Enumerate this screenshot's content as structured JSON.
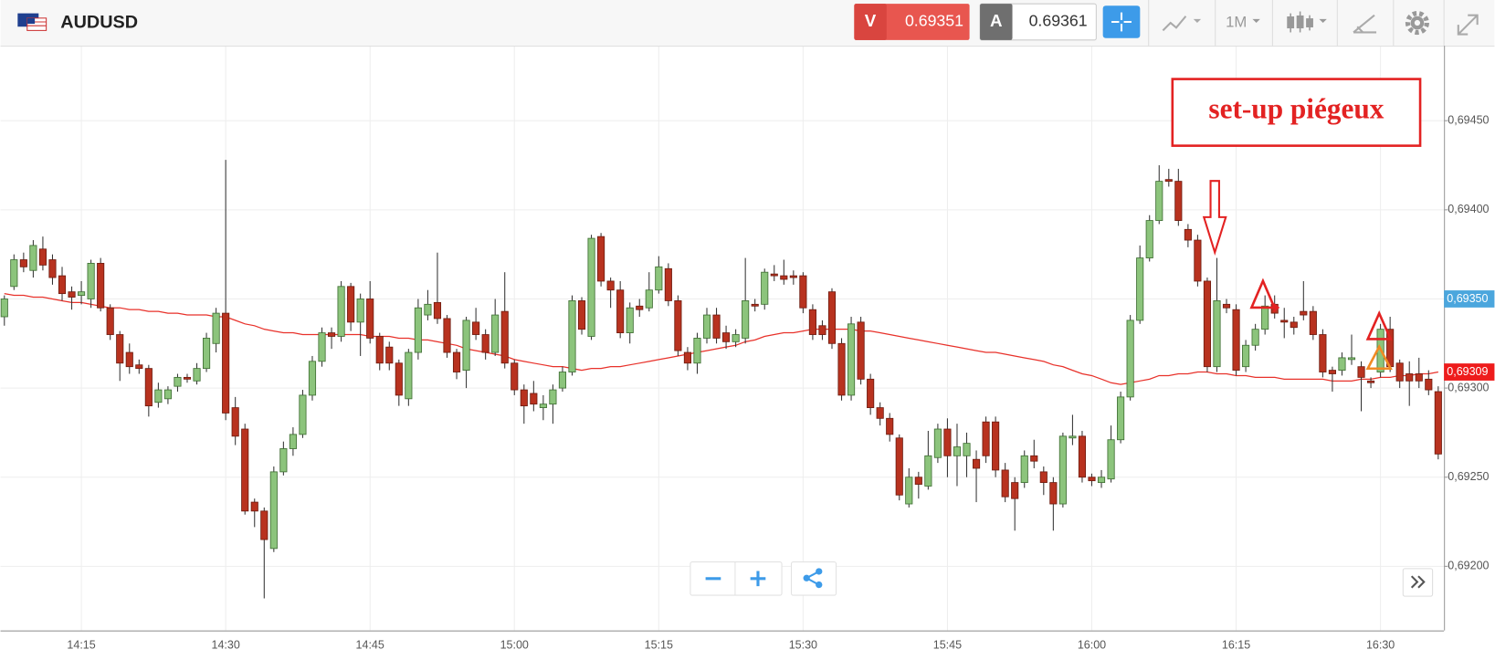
{
  "header": {
    "symbol": "AUDUSD",
    "sell_label": "V",
    "sell_price": 0.69351,
    "buy_label": "A",
    "buy_price": 0.69361,
    "timeframe": "1M"
  },
  "chart_data": {
    "type": "candlestick",
    "up_color": "#8cc47c",
    "down_color": "#b8321f",
    "grid": true,
    "annotation": "set-up piégeux",
    "x": [
      null,
      null,
      null,
      null,
      null,
      null,
      null,
      null,
      "14:15",
      null,
      null,
      null,
      null,
      null,
      null,
      null,
      null,
      null,
      null,
      null,
      null,
      null,
      null,
      "14:30",
      null,
      null,
      null,
      null,
      null,
      null,
      null,
      null,
      null,
      null,
      null,
      null,
      null,
      null,
      "14:45",
      null,
      null,
      null,
      null,
      null,
      null,
      null,
      null,
      null,
      null,
      null,
      null,
      null,
      null,
      "15:00",
      null,
      null,
      null,
      null,
      null,
      null,
      null,
      null,
      null,
      null,
      null,
      null,
      null,
      null,
      "15:15",
      null,
      null,
      null,
      null,
      null,
      null,
      null,
      null,
      null,
      null,
      null,
      null,
      null,
      null,
      "15:30",
      null,
      null,
      null,
      null,
      null,
      null,
      null,
      null,
      null,
      null,
      null,
      null,
      null,
      null,
      "15:45",
      null,
      null,
      null,
      null,
      null,
      null,
      null,
      null,
      null,
      null,
      null,
      null,
      null,
      null,
      "16:00",
      null,
      null,
      null,
      null,
      null,
      null,
      null,
      null,
      null,
      null,
      null,
      null,
      null,
      null,
      "16:15",
      null,
      null,
      null,
      null,
      null,
      null,
      null,
      null,
      null,
      null,
      null,
      null,
      null,
      null,
      "16:30",
      null,
      null,
      null,
      null,
      null,
      null
    ],
    "open": [
      0.6934,
      0.69357,
      0.69372,
      0.69366,
      0.69378,
      0.69372,
      0.69363,
      0.69354,
      0.69352,
      0.6935,
      0.6937,
      0.69345,
      0.6933,
      0.6932,
      0.69313,
      0.69311,
      0.69292,
      0.69294,
      0.69301,
      0.69306,
      0.69304,
      0.69311,
      0.69325,
      0.69342,
      0.69289,
      0.69277,
      0.69236,
      0.69231,
      0.6921,
      0.69253,
      0.69266,
      0.69274,
      0.69296,
      0.69315,
      0.69331,
      0.69329,
      0.69357,
      0.69337,
      0.6935,
      0.69329,
      0.69323,
      0.69314,
      0.69294,
      0.6932,
      0.69341,
      0.69348,
      0.69339,
      0.6932,
      0.6931,
      0.69337,
      0.6933,
      0.6932,
      0.69343,
      0.69314,
      0.69299,
      0.69297,
      0.69289,
      0.69291,
      0.693,
      0.69309,
      0.69349,
      0.69329,
      0.69385,
      0.6936,
      0.69355,
      0.69331,
      0.69346,
      0.69345,
      0.69355,
      0.69367,
      0.69349,
      0.6932,
      0.69314,
      0.69328,
      0.69341,
      0.69331,
      0.69326,
      0.69328,
      0.69347,
      0.69347,
      0.69364,
      0.69363,
      0.69363,
      0.69363,
      0.69344,
      0.69335,
      0.69354,
      0.69325,
      0.69296,
      0.69337,
      0.69305,
      0.69289,
      0.69283,
      0.69272,
      0.69235,
      0.6925,
      0.69245,
      0.69261,
      0.69277,
      0.69262,
      0.69262,
      0.6926,
      0.69281,
      0.69281,
      0.69254,
      0.69247,
      0.69247,
      0.69262,
      0.69253,
      0.69247,
      0.69235,
      0.69272,
      0.69273,
      0.6925,
      0.69247,
      0.69249,
      0.69271,
      0.69295,
      0.69338,
      0.69373,
      0.69394,
      0.69417,
      0.69416,
      0.69389,
      0.69383,
      0.6936,
      0.69312,
      0.69347,
      0.69344,
      0.69312,
      0.69324,
      0.69333,
      0.69347,
      0.69338,
      0.69337,
      0.69343,
      0.69343,
      0.6933,
      0.6931,
      0.6931,
      0.69316,
      0.69312,
      0.69304,
      0.69309,
      0.69333,
      0.69314,
      0.69308,
      0.69308,
      0.69305,
      0.69298
    ],
    "high": [
      0.69352,
      0.69375,
      0.69376,
      0.69383,
      0.69385,
      0.69375,
      0.69368,
      0.69357,
      0.6936,
      0.69372,
      0.69373,
      0.69347,
      0.69332,
      0.69325,
      0.69316,
      0.69313,
      0.69303,
      0.69301,
      0.69308,
      0.69308,
      0.69314,
      0.69331,
      0.69345,
      0.69428,
      0.69295,
      0.6928,
      0.69238,
      0.69233,
      0.69256,
      0.6927,
      0.69278,
      0.69299,
      0.69318,
      0.69334,
      0.69334,
      0.6936,
      0.69359,
      0.69353,
      0.6936,
      0.69331,
      0.69326,
      0.69316,
      0.69322,
      0.6935,
      0.69355,
      0.69376,
      0.69341,
      0.69322,
      0.6934,
      0.69345,
      0.69333,
      0.6935,
      0.69365,
      0.69316,
      0.69302,
      0.69304,
      0.69296,
      0.69302,
      0.69312,
      0.69352,
      0.69351,
      0.69386,
      0.69387,
      0.69362,
      0.6936,
      0.69348,
      0.6935,
      0.69365,
      0.69374,
      0.6937,
      0.69352,
      0.69323,
      0.69331,
      0.69345,
      0.69345,
      0.69335,
      0.69333,
      0.69373,
      0.6935,
      0.69367,
      0.69369,
      0.69372,
      0.69366,
      0.69365,
      0.69347,
      0.69338,
      0.69356,
      0.69328,
      0.6934,
      0.6934,
      0.69308,
      0.69292,
      0.69286,
      0.69274,
      0.69255,
      0.69253,
      0.69276,
      0.6928,
      0.69283,
      0.6928,
      0.69275,
      0.69265,
      0.69284,
      0.69284,
      0.69258,
      0.6925,
      0.69265,
      0.69271,
      0.69256,
      0.6925,
      0.69275,
      0.69285,
      0.69276,
      0.69252,
      0.69254,
      0.69279,
      0.69298,
      0.69341,
      0.6938,
      0.69397,
      0.69425,
      0.69423,
      0.69423,
      0.69392,
      0.69386,
      0.69362,
      0.69373,
      0.6935,
      0.69347,
      0.69327,
      0.69336,
      0.69352,
      0.69352,
      0.69345,
      0.6934,
      0.6936,
      0.69346,
      0.69333,
      0.69312,
      0.6932,
      0.6933,
      0.69315,
      0.69306,
      0.69336,
      0.6934,
      0.69316,
      0.69315,
      0.69317,
      0.6931,
      0.69301
    ],
    "low": [
      0.69335,
      0.69355,
      0.69365,
      0.69362,
      0.69366,
      0.69358,
      0.69349,
      0.69344,
      0.69347,
      0.69345,
      0.69343,
      0.69327,
      0.69304,
      0.69308,
      0.69308,
      0.69284,
      0.69289,
      0.69291,
      0.69298,
      0.69303,
      0.69302,
      0.69309,
      0.6932,
      0.69282,
      0.69268,
      0.69229,
      0.69222,
      0.69182,
      0.69208,
      0.69251,
      0.69262,
      0.69272,
      0.69293,
      0.69312,
      0.69322,
      0.69326,
      0.69332,
      0.69318,
      0.69325,
      0.6931,
      0.6931,
      0.6929,
      0.6929,
      0.69316,
      0.69338,
      0.69336,
      0.69317,
      0.69305,
      0.693,
      0.69327,
      0.69316,
      0.69318,
      0.69311,
      0.69296,
      0.6928,
      0.69287,
      0.69282,
      0.6928,
      0.69298,
      0.69307,
      0.6933,
      0.69327,
      0.69357,
      0.69345,
      0.69328,
      0.69325,
      0.6934,
      0.69343,
      0.69353,
      0.69346,
      0.69318,
      0.6931,
      0.69308,
      0.69325,
      0.69325,
      0.69322,
      0.69323,
      0.69325,
      0.69343,
      0.69344,
      0.6936,
      0.69358,
      0.69358,
      0.69342,
      0.69327,
      0.69327,
      0.69322,
      0.69293,
      0.69293,
      0.69302,
      0.69285,
      0.69279,
      0.6927,
      0.69237,
      0.69233,
      0.69238,
      0.69243,
      0.69258,
      0.6925,
      0.69245,
      0.6925,
      0.69236,
      0.69258,
      0.6925,
      0.69236,
      0.6922,
      0.69244,
      0.69255,
      0.6924,
      0.6922,
      0.69233,
      0.69268,
      0.69247,
      0.69245,
      0.69244,
      0.69247,
      0.69269,
      0.69293,
      0.69336,
      0.69371,
      0.69392,
      0.69413,
      0.69391,
      0.69379,
      0.69357,
      0.69309,
      0.69309,
      0.69342,
      0.69307,
      0.69309,
      0.69321,
      0.6933,
      0.69339,
      0.69328,
      0.6933,
      0.69338,
      0.69327,
      0.69306,
      0.69298,
      0.69307,
      0.69313,
      0.69287,
      0.693,
      0.69306,
      0.69309,
      0.693,
      0.6929,
      0.693,
      0.69296,
      0.6926
    ],
    "close": [
      0.6935,
      0.69372,
      0.69368,
      0.6938,
      0.69369,
      0.69362,
      0.69353,
      0.69351,
      0.69354,
      0.6937,
      0.69345,
      0.6933,
      0.69314,
      0.69312,
      0.69311,
      0.6929,
      0.69299,
      0.69299,
      0.69306,
      0.69305,
      0.69311,
      0.69328,
      0.69342,
      0.69286,
      0.69273,
      0.69231,
      0.69231,
      0.69215,
      0.69253,
      0.69266,
      0.69274,
      0.69296,
      0.69315,
      0.69331,
      0.69329,
      0.69357,
      0.69337,
      0.6935,
      0.69328,
      0.69314,
      0.69314,
      0.69296,
      0.6932,
      0.69345,
      0.69347,
      0.69339,
      0.6932,
      0.69309,
      0.69338,
      0.6933,
      0.6932,
      0.69341,
      0.69314,
      0.69299,
      0.6929,
      0.69291,
      0.69291,
      0.69299,
      0.69309,
      0.69349,
      0.69333,
      0.69384,
      0.6936,
      0.69355,
      0.69331,
      0.69345,
      0.69344,
      0.69355,
      0.69368,
      0.69349,
      0.69321,
      0.69314,
      0.69328,
      0.69341,
      0.69328,
      0.69326,
      0.6933,
      0.69349,
      0.69346,
      0.69365,
      0.69363,
      0.69361,
      0.69362,
      0.69345,
      0.6933,
      0.6933,
      0.69325,
      0.69296,
      0.69336,
      0.69305,
      0.69289,
      0.69283,
      0.69274,
      0.6924,
      0.6925,
      0.69246,
      0.69262,
      0.69277,
      0.69262,
      0.69267,
      0.69269,
      0.69255,
      0.69262,
      0.69254,
      0.69239,
      0.69238,
      0.69262,
      0.69259,
      0.69247,
      0.69235,
      0.69273,
      0.69273,
      0.6925,
      0.69248,
      0.6925,
      0.69271,
      0.69295,
      0.69338,
      0.69373,
      0.69394,
      0.69416,
      0.69416,
      0.69394,
      0.69383,
      0.6936,
      0.69312,
      0.69349,
      0.69345,
      0.6931,
      0.69324,
      0.69333,
      0.69346,
      0.69342,
      0.69337,
      0.69334,
      0.69341,
      0.6933,
      0.69309,
      0.69308,
      0.69317,
      0.69317,
      0.69306,
      0.69303,
      0.69333,
      0.69312,
      0.69304,
      0.69304,
      0.69304,
      0.69299,
      0.69263
    ],
    "ma": {
      "color": "#e8312a",
      "values": [
        0.69353,
        0.69352,
        0.69352,
        0.69351,
        0.69351,
        0.6935,
        0.69349,
        0.69348,
        0.69348,
        0.69347,
        0.69346,
        0.69345,
        0.69345,
        0.69344,
        0.69344,
        0.69343,
        0.69343,
        0.69342,
        0.69342,
        0.69341,
        0.69341,
        0.69341,
        0.6934,
        0.6934,
        0.69338,
        0.69336,
        0.69335,
        0.69333,
        0.69332,
        0.69331,
        0.69331,
        0.6933,
        0.6933,
        0.6933,
        0.6933,
        0.6933,
        0.6933,
        0.6933,
        0.69329,
        0.69329,
        0.69329,
        0.69328,
        0.69328,
        0.69327,
        0.69327,
        0.69326,
        0.69325,
        0.69324,
        0.69322,
        0.69321,
        0.6932,
        0.69319,
        0.69318,
        0.69316,
        0.69315,
        0.69314,
        0.69313,
        0.69312,
        0.69312,
        0.69311,
        0.6931,
        0.69311,
        0.69311,
        0.69312,
        0.69312,
        0.69313,
        0.69314,
        0.69315,
        0.69316,
        0.69317,
        0.69318,
        0.69319,
        0.6932,
        0.69321,
        0.69322,
        0.69323,
        0.69324,
        0.69326,
        0.69327,
        0.69329,
        0.6933,
        0.69331,
        0.69331,
        0.69332,
        0.69333,
        0.69333,
        0.69333,
        0.69333,
        0.69333,
        0.69332,
        0.69332,
        0.69331,
        0.6933,
        0.69329,
        0.69328,
        0.69327,
        0.69326,
        0.69325,
        0.69324,
        0.69323,
        0.69322,
        0.69321,
        0.6932,
        0.6932,
        0.69319,
        0.69318,
        0.69317,
        0.69316,
        0.69315,
        0.69313,
        0.69312,
        0.6931,
        0.69308,
        0.69307,
        0.69305,
        0.69303,
        0.69302,
        0.69303,
        0.69304,
        0.69305,
        0.69307,
        0.69307,
        0.69308,
        0.69308,
        0.69309,
        0.69309,
        0.69308,
        0.69308,
        0.69307,
        0.69307,
        0.69306,
        0.69306,
        0.69306,
        0.69305,
        0.69305,
        0.69305,
        0.69305,
        0.69305,
        0.69304,
        0.69304,
        0.69304,
        0.69305,
        0.69305,
        0.69306,
        0.69306,
        0.69307,
        0.69307,
        0.69308,
        0.69308,
        0.69309
      ]
    },
    "ylim": [
      0.69164,
      0.69491
    ],
    "yticks": [
      {
        "value": 0.692,
        "label": "0,69200"
      },
      {
        "value": 0.6925,
        "label": "0,69250"
      },
      {
        "value": 0.693,
        "label": "0,69300"
      },
      {
        "value": 0.6935,
        "label": "0,69350"
      },
      {
        "value": 0.694,
        "label": "0,69400"
      },
      {
        "value": 0.6945,
        "label": "0,69450"
      }
    ],
    "price_markers": [
      {
        "value": 0.6935,
        "label": "0,69350",
        "color": "#4ba6dd"
      },
      {
        "value": 0.69309,
        "label": "0,69309",
        "color": "#ee1c1c"
      }
    ]
  }
}
